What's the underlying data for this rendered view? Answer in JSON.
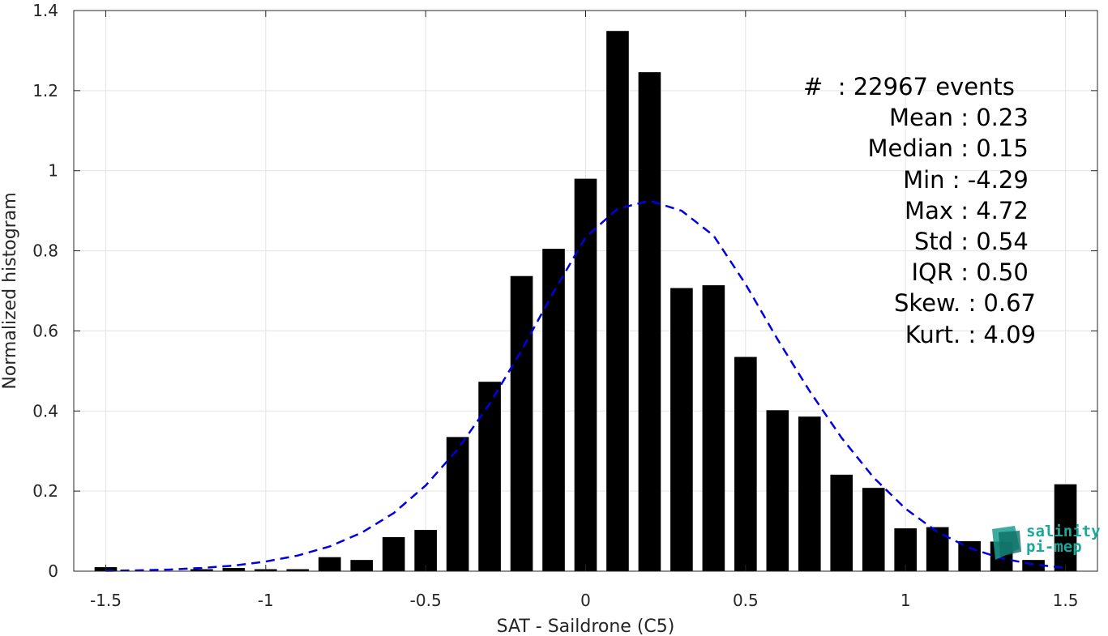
{
  "chart_data": {
    "type": "bar",
    "xlabel": "SAT - Saildrone (C5)",
    "ylabel": "Normalized histogram",
    "xlim": [
      -1.6,
      1.6
    ],
    "ylim": [
      0,
      1.4
    ],
    "xticks": [
      -1.5,
      -1,
      -0.5,
      0,
      0.5,
      1,
      1.5
    ],
    "xtick_labels": [
      "-1.5",
      "-1",
      "-0.5",
      "0",
      "0.5",
      "1",
      "1.5"
    ],
    "yticks": [
      0,
      0.2,
      0.4,
      0.6,
      0.8,
      1,
      1.2,
      1.4
    ],
    "ytick_labels": [
      "0",
      "0.2",
      "0.4",
      "0.6",
      "0.8",
      "1",
      "1.2",
      "1.4"
    ],
    "grid": true,
    "bar_width": 0.07,
    "bar_color": "#000000",
    "series": [
      {
        "kind": "bar",
        "x": [
          -1.5,
          -1.4,
          -1.3,
          -1.2,
          -1.1,
          -1.0,
          -0.9,
          -0.8,
          -0.7,
          -0.6,
          -0.5,
          -0.4,
          -0.3,
          -0.2,
          -0.1,
          0.0,
          0.1,
          0.2,
          0.3,
          0.4,
          0.5,
          0.6,
          0.7,
          0.8,
          0.9,
          1.0,
          1.1,
          1.2,
          1.3,
          1.4,
          1.5
        ],
        "values": [
          0.01,
          0.0,
          0.0,
          0.005,
          0.008,
          0.005,
          0.005,
          0.035,
          0.028,
          0.085,
          0.103,
          0.335,
          0.473,
          0.737,
          0.805,
          0.98,
          1.349,
          1.246,
          0.707,
          0.714,
          0.535,
          0.402,
          0.386,
          0.241,
          0.208,
          0.107,
          0.11,
          0.075,
          0.074,
          0.028,
          0.217
        ]
      },
      {
        "kind": "line",
        "style": "dashed",
        "color": "#0000e0",
        "x": [
          -1.5,
          -1.4,
          -1.3,
          -1.2,
          -1.1,
          -1.0,
          -0.9,
          -0.8,
          -0.7,
          -0.6,
          -0.5,
          -0.4,
          -0.3,
          -0.2,
          -0.1,
          0.0,
          0.1,
          0.2,
          0.3,
          0.4,
          0.5,
          0.6,
          0.7,
          0.8,
          0.9,
          1.0,
          1.1,
          1.2,
          1.3,
          1.4,
          1.5
        ],
        "values": [
          0.001,
          0.002,
          0.004,
          0.008,
          0.014,
          0.024,
          0.039,
          0.062,
          0.096,
          0.145,
          0.214,
          0.304,
          0.418,
          0.552,
          0.697,
          0.834,
          0.905,
          0.925,
          0.9,
          0.838,
          0.717,
          0.579,
          0.45,
          0.333,
          0.234,
          0.156,
          0.098,
          0.058,
          0.032,
          0.017,
          0.008
        ]
      }
    ]
  },
  "stats": [
    "#  : 22967 events",
    "Mean : 0.23 ",
    "Median : 0.15 ",
    "Min : -4.29 ",
    "Max : 4.72 ",
    "Std : 0.54 ",
    "IQR : 0.50 ",
    "Skew. : 0.67",
    "Kurt. : 4.09"
  ],
  "logo": {
    "line1": "salinity",
    "line2": "pi-mep",
    "color": "#1aa89a"
  }
}
